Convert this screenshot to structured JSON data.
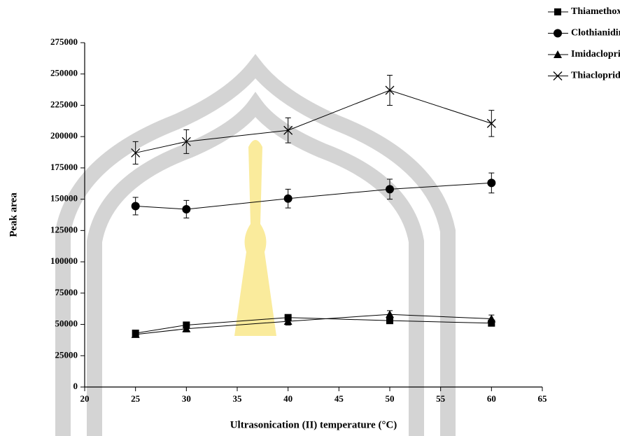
{
  "chart_data": {
    "type": "line",
    "x_label": "Ultrasonication (II) temperature (°C)",
    "y_label": "Peak area",
    "x": [
      25,
      30,
      40,
      50,
      60
    ],
    "xlim": [
      20,
      65
    ],
    "xticks": [
      20,
      25,
      30,
      35,
      40,
      45,
      50,
      55,
      60,
      65
    ],
    "ylim": [
      0,
      275000
    ],
    "yticks": [
      0,
      25000,
      50000,
      75000,
      100000,
      125000,
      150000,
      175000,
      200000,
      225000,
      250000,
      275000
    ],
    "legend": "top-right",
    "series": [
      {
        "name": "Thiamethoxam",
        "color": "#000000",
        "marker": "square",
        "values": [
          43000,
          49500,
          55500,
          53000,
          51000
        ],
        "errors": [
          1500,
          2000,
          2000,
          2000,
          2000
        ]
      },
      {
        "name": "Clothianidin",
        "color": "#000000",
        "marker": "circle",
        "values": [
          144500,
          142000,
          150500,
          158000,
          163000
        ],
        "errors": [
          7000,
          7000,
          7500,
          8000,
          8000
        ]
      },
      {
        "name": "Imidacloprid",
        "color": "#000000",
        "marker": "triangle",
        "values": [
          42000,
          46500,
          52500,
          58000,
          54500
        ],
        "errors": [
          2000,
          2500,
          3000,
          3000,
          3000
        ]
      },
      {
        "name": "Thiacloprid",
        "color": "#000000",
        "marker": "cross",
        "values": [
          187000,
          196000,
          205000,
          237000,
          210500
        ],
        "errors": [
          9000,
          9500,
          10000,
          12000,
          10500
        ]
      }
    ]
  }
}
